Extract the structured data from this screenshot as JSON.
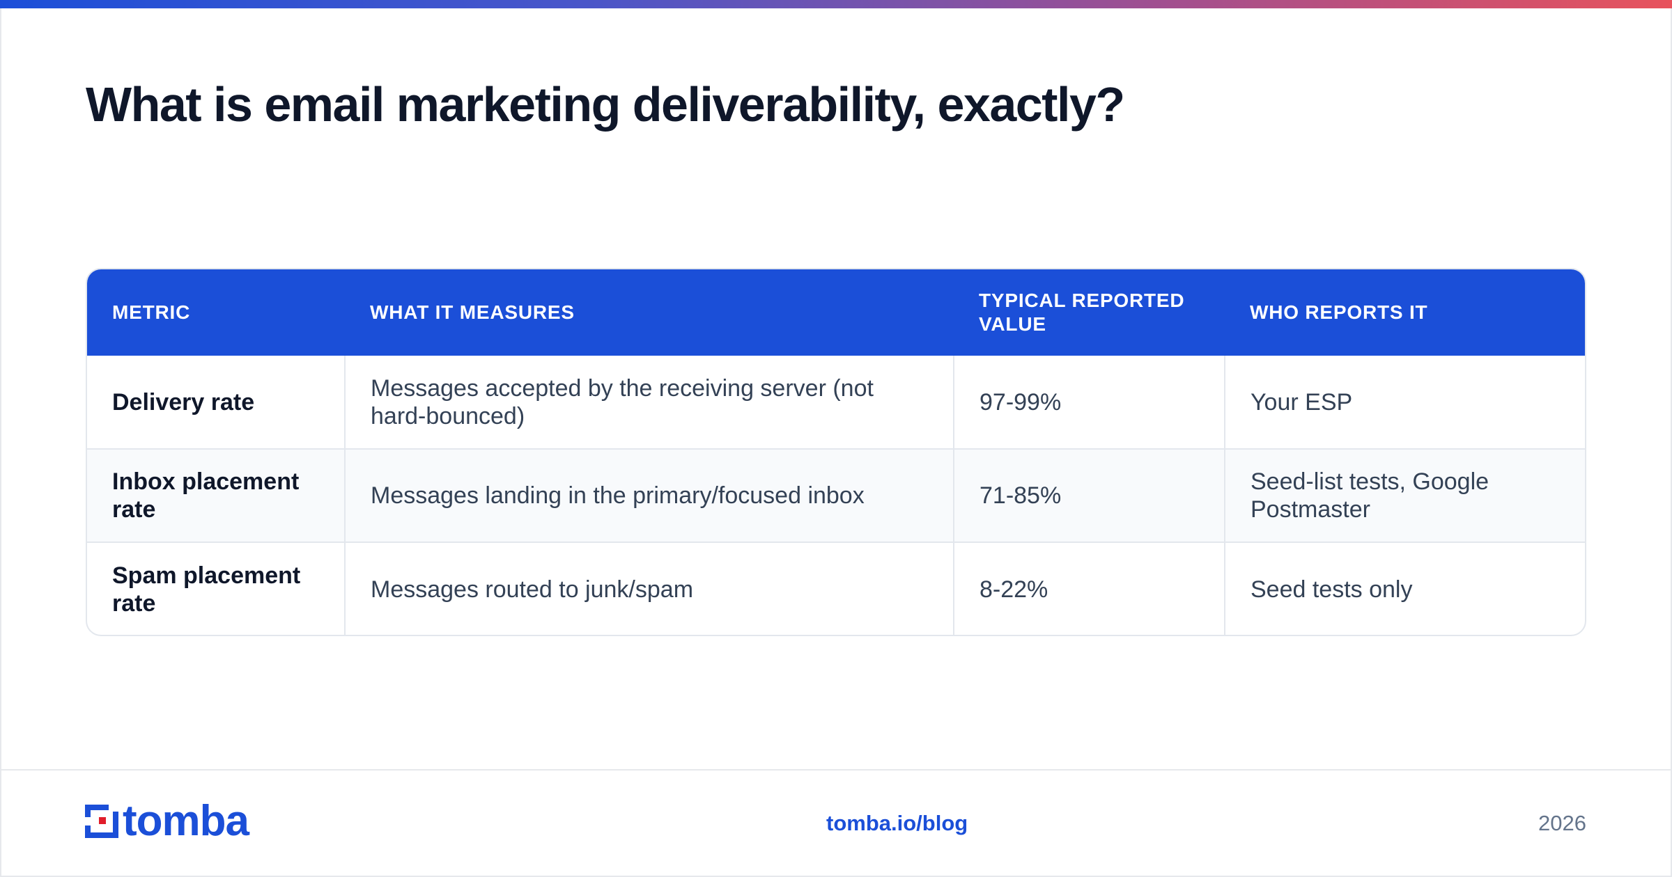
{
  "page": {
    "title": "What is email marketing deliverability, exactly?"
  },
  "colors": {
    "accent": "#1b4fd8",
    "logo_red": "#e11d2a",
    "text_dark": "#0f172a",
    "text_body": "#334155",
    "muted": "#64748b"
  },
  "table": {
    "headers": [
      "METRIC",
      "WHAT IT MEASURES",
      "TYPICAL REPORTED VALUE",
      "WHO REPORTS IT"
    ],
    "rows": [
      {
        "metric": "Delivery rate",
        "measures": "Messages accepted by the receiving server (not hard-bounced)",
        "value": "97-99%",
        "reporter": "Your ESP"
      },
      {
        "metric": "Inbox placement rate",
        "measures": "Messages landing in the primary/focused inbox",
        "value": "71-85%",
        "reporter": "Seed-list tests, Google Postmaster"
      },
      {
        "metric": "Spam placement rate",
        "measures": "Messages routed to junk/spam",
        "value": "8-22%",
        "reporter": "Seed tests only"
      }
    ]
  },
  "footer": {
    "logo_icon": "tomba-logo-icon",
    "logo_text": "tomba",
    "link": "tomba.io/blog",
    "year": "2026"
  }
}
